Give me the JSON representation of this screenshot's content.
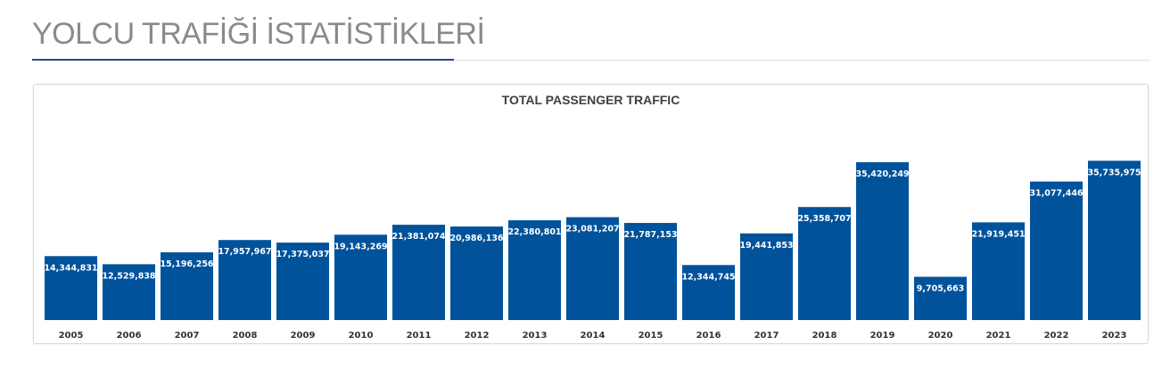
{
  "page": {
    "heading": "YOLCU TRAFİĞİ İSTATİSTİKLERİ"
  },
  "colors": {
    "bar": "#00529b",
    "heading": "#8a8a8a",
    "accent": "#1f4e8c"
  },
  "chart_data": {
    "type": "bar",
    "title": "TOTAL PASSENGER TRAFFIC",
    "xlabel": "",
    "ylabel": "",
    "ylim": [
      0,
      40000000
    ],
    "grid": false,
    "legend": "none",
    "categories": [
      "2005",
      "2006",
      "2007",
      "2008",
      "2009",
      "2010",
      "2011",
      "2012",
      "2013",
      "2014",
      "2015",
      "2016",
      "2017",
      "2018",
      "2019",
      "2020",
      "2021",
      "2022",
      "2023"
    ],
    "values": [
      14344831,
      12529838,
      15196256,
      17957967,
      17375037,
      19143269,
      21381074,
      20986136,
      22380801,
      23081207,
      21787153,
      12344745,
      19441853,
      25358707,
      35420249,
      9705663,
      21919451,
      31077446,
      35735975
    ],
    "value_labels": [
      "14,344,831",
      "12,529,838",
      "15,196,256",
      "17,957,967",
      "17,375,037",
      "19,143,269",
      "21,381,074",
      "20,986,136",
      "22,380,801",
      "23,081,207",
      "21,787,153",
      "12,344,745",
      "19,441,853",
      "25,358,707",
      "35,420,249",
      "9,705,663",
      "21,919,451",
      "31,077,446",
      "35,735,975"
    ]
  }
}
